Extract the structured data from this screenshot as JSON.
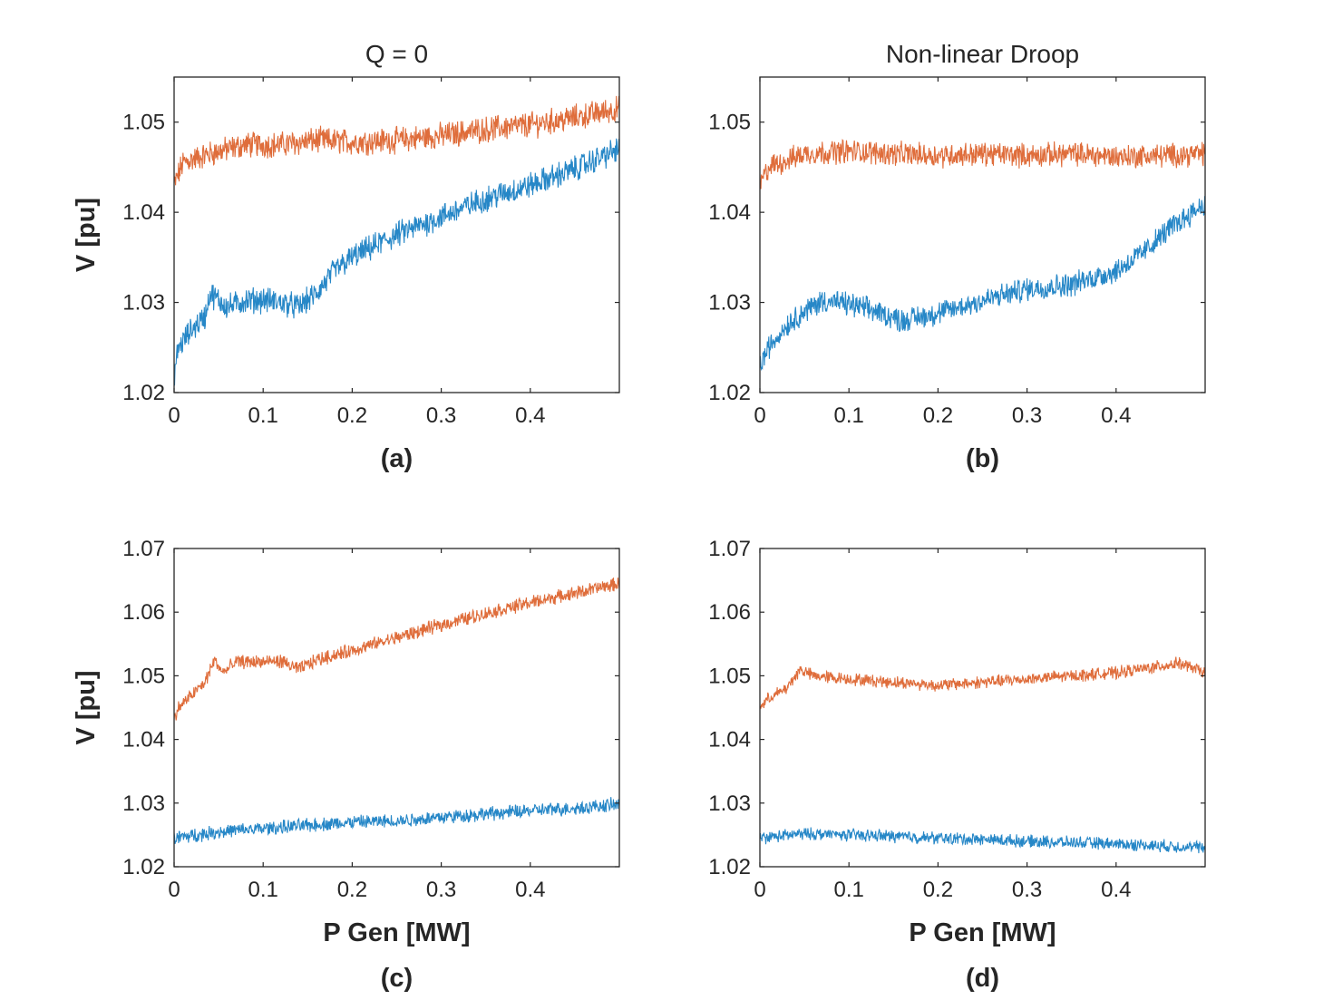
{
  "figure": {
    "colors": {
      "series_blue": "#0072BD",
      "series_orange": "#D95319",
      "axes": "#262626"
    }
  },
  "chart_data": [
    {
      "id": "a",
      "type": "line",
      "title": "Q = 0",
      "caption": "(a)",
      "xlabel": "",
      "ylabel": "V [pu]",
      "xlim": [
        0,
        0.5
      ],
      "ylim": [
        1.02,
        1.055
      ],
      "xticks": [
        "0",
        "0.1",
        "0.2",
        "0.3",
        "0.4"
      ],
      "yticks": [
        "1.02",
        "1.03",
        "1.04",
        "1.05"
      ],
      "noise": 0.0012,
      "series": [
        {
          "color": "#D95319",
          "x": [
            0,
            0.01,
            0.04,
            0.08,
            0.12,
            0.16,
            0.2,
            0.25,
            0.3,
            0.35,
            0.4,
            0.45,
            0.5
          ],
          "y": [
            1.043,
            1.0455,
            1.0465,
            1.0475,
            1.0475,
            1.048,
            1.0478,
            1.048,
            1.0485,
            1.0492,
            1.0497,
            1.0505,
            1.0515
          ]
        },
        {
          "color": "#0072BD",
          "x": [
            0,
            0.005,
            0.02,
            0.035,
            0.04,
            0.06,
            0.08,
            0.1,
            0.12,
            0.14,
            0.16,
            0.18,
            0.2,
            0.25,
            0.3,
            0.35,
            0.4,
            0.45,
            0.5
          ],
          "y": [
            1.022,
            1.025,
            1.027,
            1.0285,
            1.031,
            1.0295,
            1.0302,
            1.0303,
            1.03,
            1.0295,
            1.031,
            1.0335,
            1.035,
            1.0375,
            1.0395,
            1.0415,
            1.043,
            1.0448,
            1.047
          ]
        }
      ]
    },
    {
      "id": "b",
      "type": "line",
      "title": "Non-linear Droop",
      "caption": "(b)",
      "xlabel": "",
      "ylabel": "",
      "xlim": [
        0,
        0.5
      ],
      "ylim": [
        1.02,
        1.055
      ],
      "xticks": [
        "0",
        "0.1",
        "0.2",
        "0.3",
        "0.4"
      ],
      "yticks": [
        "1.02",
        "1.03",
        "1.04",
        "1.05"
      ],
      "noise": 0.0011,
      "series": [
        {
          "color": "#D95319",
          "x": [
            0,
            0.01,
            0.05,
            0.1,
            0.15,
            0.2,
            0.25,
            0.3,
            0.35,
            0.4,
            0.45,
            0.5
          ],
          "y": [
            1.043,
            1.045,
            1.0465,
            1.0468,
            1.0465,
            1.0463,
            1.0465,
            1.0463,
            1.0465,
            1.0462,
            1.0463,
            1.0465
          ]
        },
        {
          "color": "#0072BD",
          "x": [
            0,
            0.01,
            0.03,
            0.05,
            0.07,
            0.1,
            0.13,
            0.16,
            0.2,
            0.25,
            0.3,
            0.35,
            0.4,
            0.43,
            0.46,
            0.5
          ],
          "y": [
            1.023,
            1.025,
            1.0275,
            1.029,
            1.0302,
            1.0298,
            1.029,
            1.028,
            1.0288,
            1.0302,
            1.0315,
            1.032,
            1.0335,
            1.0355,
            1.0382,
            1.041
          ]
        }
      ]
    },
    {
      "id": "c",
      "type": "line",
      "title": "",
      "caption": "(c)",
      "xlabel": "P Gen [MW]",
      "ylabel": "V [pu]",
      "xlim": [
        0,
        0.5
      ],
      "ylim": [
        1.02,
        1.07
      ],
      "xticks": [
        "0",
        "0.1",
        "0.2",
        "0.3",
        "0.4"
      ],
      "yticks": [
        "1.02",
        "1.03",
        "1.04",
        "1.05",
        "1.06",
        "1.07"
      ],
      "noise": 0.0009,
      "series": [
        {
          "color": "#D95319",
          "x": [
            0,
            0.005,
            0.02,
            0.035,
            0.045,
            0.055,
            0.07,
            0.1,
            0.12,
            0.14,
            0.16,
            0.2,
            0.25,
            0.3,
            0.35,
            0.4,
            0.45,
            0.5
          ],
          "y": [
            1.043,
            1.045,
            1.047,
            1.049,
            1.0525,
            1.0505,
            1.0522,
            1.0522,
            1.0523,
            1.051,
            1.0525,
            1.054,
            1.056,
            1.058,
            1.0598,
            1.0615,
            1.063,
            1.0645
          ]
        },
        {
          "color": "#0072BD",
          "x": [
            0,
            0.05,
            0.1,
            0.15,
            0.2,
            0.25,
            0.3,
            0.35,
            0.4,
            0.45,
            0.5
          ],
          "y": [
            1.0245,
            1.0255,
            1.026,
            1.0265,
            1.027,
            1.0272,
            1.0278,
            1.0283,
            1.0288,
            1.0292,
            1.0298
          ]
        }
      ]
    },
    {
      "id": "d",
      "type": "line",
      "title": "",
      "caption": "(d)",
      "xlabel": "P Gen [MW]",
      "ylabel": "",
      "xlim": [
        0,
        0.5
      ],
      "ylim": [
        1.02,
        1.07
      ],
      "xticks": [
        "0",
        "0.1",
        "0.2",
        "0.3",
        "0.4"
      ],
      "yticks": [
        "1.02",
        "1.03",
        "1.04",
        "1.05",
        "1.06",
        "1.07"
      ],
      "noise": 0.0008,
      "series": [
        {
          "color": "#D95319",
          "x": [
            0,
            0.01,
            0.03,
            0.045,
            0.06,
            0.1,
            0.15,
            0.2,
            0.25,
            0.3,
            0.35,
            0.4,
            0.45,
            0.47,
            0.5
          ],
          "y": [
            1.045,
            1.0465,
            1.048,
            1.051,
            1.05,
            1.0495,
            1.049,
            1.0485,
            1.049,
            1.0495,
            1.05,
            1.0505,
            1.0515,
            1.052,
            1.0505
          ]
        },
        {
          "color": "#0072BD",
          "x": [
            0,
            0.05,
            0.1,
            0.15,
            0.2,
            0.25,
            0.3,
            0.35,
            0.4,
            0.45,
            0.5
          ],
          "y": [
            1.0245,
            1.0252,
            1.025,
            1.0248,
            1.0245,
            1.0243,
            1.024,
            1.0238,
            1.0236,
            1.0233,
            1.023
          ]
        }
      ]
    }
  ]
}
